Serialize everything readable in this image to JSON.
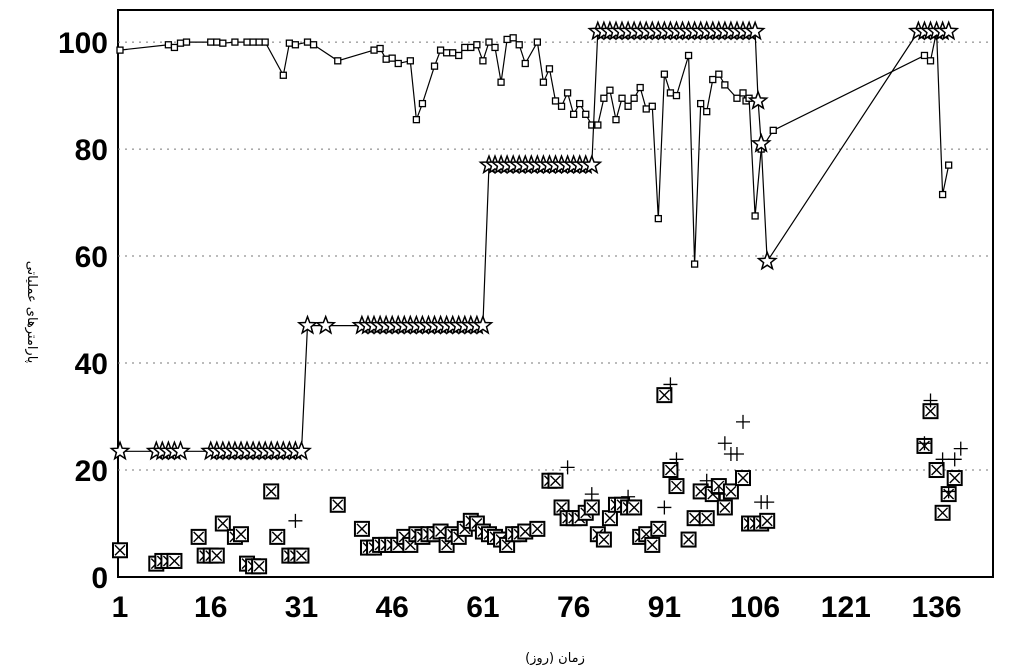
{
  "chart_data": {
    "type": "scatter",
    "title": "",
    "xlabel": "زمان (روز)",
    "ylabel": "پارامترهای عملیاتی",
    "xlim": [
      1,
      145
    ],
    "ylim": [
      0,
      106
    ],
    "x_ticks": [
      1,
      16,
      31,
      46,
      61,
      76,
      91,
      106,
      121,
      136
    ],
    "y_ticks": [
      0,
      20,
      40,
      60,
      80,
      100
    ],
    "grid": "dotted horizontal",
    "legend": "none",
    "series": [
      {
        "marker": "square-small",
        "line": true,
        "points": [
          [
            1,
            98.5
          ],
          [
            9,
            99.5
          ],
          [
            10,
            99
          ],
          [
            11,
            99.8
          ],
          [
            12,
            100
          ],
          [
            16,
            100
          ],
          [
            17,
            100
          ],
          [
            18,
            99.8
          ],
          [
            20,
            100
          ],
          [
            22,
            100
          ],
          [
            23,
            100
          ],
          [
            24,
            100
          ],
          [
            25,
            100
          ],
          [
            28,
            93.8
          ],
          [
            29,
            99.8
          ],
          [
            30,
            99.5
          ],
          [
            32,
            100
          ],
          [
            33,
            99.5
          ],
          [
            37,
            96.5
          ],
          [
            43,
            98.5
          ],
          [
            44,
            98.8
          ],
          [
            45,
            96.8
          ],
          [
            46,
            97
          ],
          [
            47,
            96
          ],
          [
            49,
            96.5
          ],
          [
            50,
            85.5
          ],
          [
            51,
            88.5
          ],
          [
            53,
            95.5
          ],
          [
            54,
            98.5
          ],
          [
            55,
            98
          ],
          [
            56,
            98
          ],
          [
            57,
            97.5
          ],
          [
            58,
            99
          ],
          [
            59,
            99
          ],
          [
            60,
            99.5
          ],
          [
            61,
            96.5
          ],
          [
            62,
            100
          ],
          [
            63,
            99
          ],
          [
            64,
            92.5
          ],
          [
            65,
            100.5
          ],
          [
            66,
            100.8
          ],
          [
            67,
            99.5
          ],
          [
            68,
            96
          ],
          [
            70,
            100
          ],
          [
            71,
            92.5
          ],
          [
            72,
            95
          ],
          [
            73,
            89
          ],
          [
            74,
            88
          ],
          [
            75,
            90.5
          ],
          [
            76,
            86.5
          ],
          [
            77,
            88.5
          ],
          [
            78,
            86.5
          ],
          [
            79,
            84.5
          ],
          [
            80,
            84.5
          ],
          [
            81,
            89.5
          ],
          [
            82,
            91
          ],
          [
            83,
            85.5
          ],
          [
            84,
            89.5
          ],
          [
            85,
            88
          ],
          [
            86,
            89.5
          ],
          [
            87,
            91.5
          ],
          [
            88,
            87.5
          ],
          [
            89,
            88
          ],
          [
            90,
            67
          ],
          [
            91,
            94
          ],
          [
            92,
            90.5
          ],
          [
            93,
            90
          ],
          [
            95,
            97.5
          ],
          [
            96,
            58.5
          ],
          [
            97,
            88.5
          ],
          [
            98,
            87
          ],
          [
            99,
            93
          ],
          [
            100,
            94
          ],
          [
            101,
            92
          ],
          [
            103,
            89.5
          ],
          [
            104,
            90.5
          ],
          [
            104.5,
            89
          ],
          [
            105,
            89.5
          ],
          [
            106,
            67.5
          ],
          [
            107,
            80
          ],
          [
            109,
            83.5
          ],
          [
            134,
            97.5
          ],
          [
            135,
            96.5
          ],
          [
            136,
            102
          ],
          [
            137,
            71.5
          ],
          [
            138,
            77
          ]
        ]
      },
      {
        "marker": "star",
        "line": true,
        "points": [
          [
            1,
            23.5
          ],
          [
            7,
            23.5
          ],
          [
            8,
            23.5
          ],
          [
            9,
            23.5
          ],
          [
            10,
            23.5
          ],
          [
            11,
            23.5
          ],
          [
            16,
            23.5
          ],
          [
            17,
            23.5
          ],
          [
            18,
            23.5
          ],
          [
            19,
            23.5
          ],
          [
            20,
            23.5
          ],
          [
            21,
            23.5
          ],
          [
            22,
            23.5
          ],
          [
            23,
            23.5
          ],
          [
            24,
            23.5
          ],
          [
            25,
            23.5
          ],
          [
            26,
            23.5
          ],
          [
            27,
            23.5
          ],
          [
            28,
            23.5
          ],
          [
            29,
            23.5
          ],
          [
            30,
            23.5
          ],
          [
            31,
            23.5
          ],
          [
            32,
            47
          ],
          [
            35,
            47
          ],
          [
            41,
            47
          ],
          [
            42,
            47
          ],
          [
            43,
            47
          ],
          [
            44,
            47
          ],
          [
            45,
            47
          ],
          [
            46,
            47
          ],
          [
            47,
            47
          ],
          [
            48,
            47
          ],
          [
            49,
            47
          ],
          [
            50,
            47
          ],
          [
            51,
            47
          ],
          [
            52,
            47
          ],
          [
            53,
            47
          ],
          [
            54,
            47
          ],
          [
            55,
            47
          ],
          [
            56,
            47
          ],
          [
            57,
            47
          ],
          [
            58,
            47
          ],
          [
            59,
            47
          ],
          [
            60,
            47
          ],
          [
            61,
            47
          ],
          [
            62,
            77
          ],
          [
            63,
            77
          ],
          [
            64,
            77
          ],
          [
            65,
            77
          ],
          [
            66,
            77
          ],
          [
            67,
            77
          ],
          [
            68,
            77
          ],
          [
            69,
            77
          ],
          [
            70,
            77
          ],
          [
            71,
            77
          ],
          [
            72,
            77
          ],
          [
            73,
            77
          ],
          [
            74,
            77
          ],
          [
            75,
            77
          ],
          [
            76,
            77
          ],
          [
            77,
            77
          ],
          [
            78,
            77
          ],
          [
            79,
            77
          ],
          [
            80,
            102
          ],
          [
            81,
            102
          ],
          [
            82,
            102
          ],
          [
            83,
            102
          ],
          [
            84,
            102
          ],
          [
            85,
            102
          ],
          [
            86,
            102
          ],
          [
            87,
            102
          ],
          [
            88,
            102
          ],
          [
            89,
            102
          ],
          [
            90,
            102
          ],
          [
            91,
            102
          ],
          [
            92,
            102
          ],
          [
            93,
            102
          ],
          [
            94,
            102
          ],
          [
            95,
            102
          ],
          [
            96,
            102
          ],
          [
            97,
            102
          ],
          [
            98,
            102
          ],
          [
            99,
            102
          ],
          [
            100,
            102
          ],
          [
            101,
            102
          ],
          [
            102,
            102
          ],
          [
            103,
            102
          ],
          [
            104,
            102
          ],
          [
            105,
            102
          ],
          [
            106,
            102
          ],
          [
            106.5,
            89
          ],
          [
            107,
            81
          ],
          [
            108,
            59
          ],
          [
            133,
            102
          ],
          [
            134,
            102
          ],
          [
            135,
            102
          ],
          [
            136,
            102
          ],
          [
            137,
            102
          ],
          [
            138,
            102
          ]
        ]
      },
      {
        "marker": "boxed-x",
        "line": false,
        "points": [
          [
            1,
            5
          ],
          [
            7,
            2.5
          ],
          [
            8,
            3
          ],
          [
            9,
            3
          ],
          [
            10,
            3
          ],
          [
            14,
            7.5
          ],
          [
            15,
            4
          ],
          [
            16,
            4
          ],
          [
            17,
            4
          ],
          [
            18,
            10
          ],
          [
            20,
            7.5
          ],
          [
            21,
            8
          ],
          [
            22,
            2.5
          ],
          [
            23,
            2
          ],
          [
            24,
            2
          ],
          [
            26,
            16
          ],
          [
            27,
            7.5
          ],
          [
            29,
            4
          ],
          [
            30,
            4
          ],
          [
            31,
            4
          ],
          [
            37,
            13.5
          ],
          [
            41,
            9
          ],
          [
            42,
            5.5
          ],
          [
            43,
            5.5
          ],
          [
            44,
            6
          ],
          [
            45,
            6
          ],
          [
            46,
            6
          ],
          [
            47,
            6
          ],
          [
            48,
            7.5
          ],
          [
            49,
            6
          ],
          [
            50,
            8
          ],
          [
            51,
            7.5
          ],
          [
            52,
            8
          ],
          [
            53,
            8
          ],
          [
            54,
            8.5
          ],
          [
            55,
            6
          ],
          [
            56,
            8
          ],
          [
            57,
            7.5
          ],
          [
            58,
            9
          ],
          [
            59,
            10.5
          ],
          [
            60,
            10
          ],
          [
            61,
            8.5
          ],
          [
            62,
            8
          ],
          [
            63,
            7.5
          ],
          [
            64,
            7
          ],
          [
            65,
            6
          ],
          [
            66,
            8
          ],
          [
            67,
            8
          ],
          [
            68,
            8.5
          ],
          [
            70,
            9
          ],
          [
            72,
            18
          ],
          [
            73,
            18
          ],
          [
            74,
            13
          ],
          [
            75,
            11
          ],
          [
            76,
            11
          ],
          [
            77,
            11
          ],
          [
            78,
            12
          ],
          [
            79,
            13
          ],
          [
            80,
            8
          ],
          [
            81,
            7
          ],
          [
            82,
            11
          ],
          [
            83,
            13.5
          ],
          [
            84,
            13.5
          ],
          [
            85,
            13
          ],
          [
            86,
            13
          ],
          [
            87,
            7.5
          ],
          [
            88,
            8
          ],
          [
            89,
            6
          ],
          [
            90,
            9
          ],
          [
            91,
            34
          ],
          [
            92,
            20
          ],
          [
            93,
            17
          ],
          [
            95,
            7
          ],
          [
            96,
            11
          ],
          [
            97,
            16
          ],
          [
            98,
            11
          ],
          [
            99,
            15.5
          ],
          [
            100,
            17
          ],
          [
            101,
            13
          ],
          [
            102,
            16
          ],
          [
            104,
            18.5
          ],
          [
            105,
            10
          ],
          [
            106,
            10
          ],
          [
            107,
            10
          ],
          [
            108,
            10.5
          ],
          [
            134,
            24.5
          ],
          [
            135,
            31
          ],
          [
            136,
            20
          ],
          [
            137,
            12
          ],
          [
            138,
            15.5
          ],
          [
            139,
            18.5
          ]
        ]
      },
      {
        "marker": "plus",
        "line": false,
        "points": [
          [
            30,
            10.5
          ],
          [
            75,
            20.5
          ],
          [
            79,
            15.5
          ],
          [
            85,
            15
          ],
          [
            91,
            13
          ],
          [
            92,
            36
          ],
          [
            93,
            22
          ],
          [
            98,
            18
          ],
          [
            100,
            15.5
          ],
          [
            101,
            25
          ],
          [
            102,
            23
          ],
          [
            103,
            23
          ],
          [
            104,
            29
          ],
          [
            107,
            14
          ],
          [
            108,
            14
          ],
          [
            134,
            25
          ],
          [
            135,
            33
          ],
          [
            137,
            22
          ],
          [
            138,
            16
          ],
          [
            139,
            22
          ],
          [
            140,
            24
          ]
        ]
      }
    ]
  }
}
